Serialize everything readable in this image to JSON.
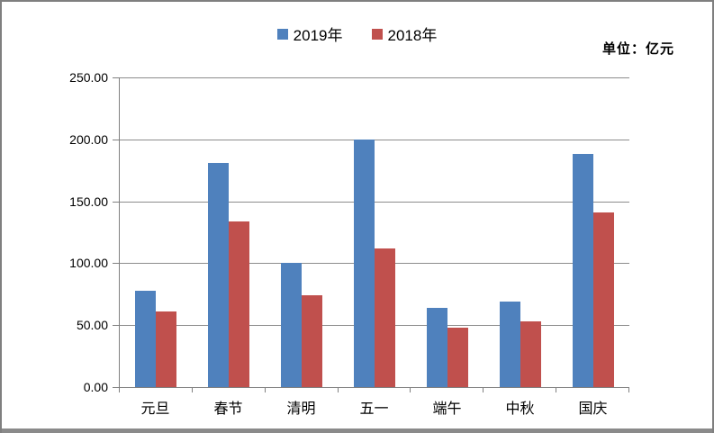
{
  "unit_label": "单位：亿元",
  "colors": {
    "series_2019": "#4F81BD",
    "series_2018": "#C0504D",
    "gridline": "#8C8C8C",
    "axis": "#808080",
    "frame_border": "#7F7F7F",
    "bottom_band": "#8A8A8A",
    "text": "#000000"
  },
  "chart_data": {
    "type": "bar",
    "title": "",
    "xlabel": "",
    "ylabel": "",
    "unit": "亿元",
    "categories": [
      "元旦",
      "春节",
      "清明",
      "五一",
      "端午",
      "中秋",
      "国庆"
    ],
    "series": [
      {
        "name": "2019年",
        "color": "#4F81BD",
        "values": [
          78,
          181,
          100,
          200,
          64,
          69,
          188
        ]
      },
      {
        "name": "2018年",
        "color": "#C0504D",
        "values": [
          61,
          134,
          74,
          112,
          48,
          53,
          141
        ]
      }
    ],
    "ylim": [
      0,
      250
    ],
    "ytick_step": 50,
    "ytick_labels": [
      "0.00",
      "50.00",
      "100.00",
      "150.00",
      "200.00",
      "250.00"
    ],
    "grid": true,
    "legend_position": "top-center"
  }
}
